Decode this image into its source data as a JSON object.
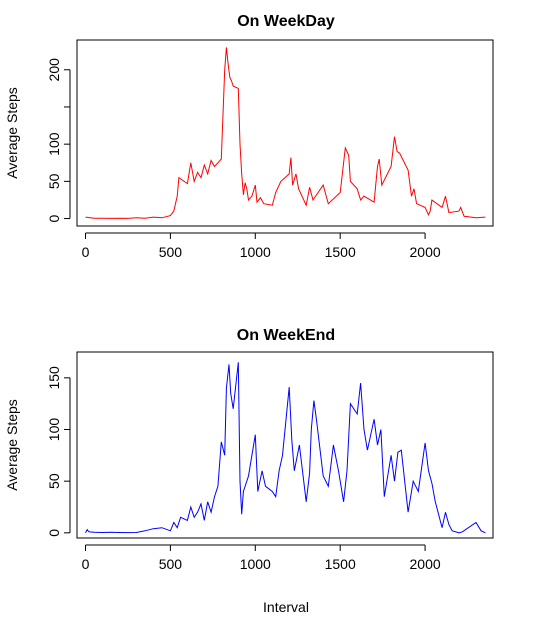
{
  "chart_data": [
    {
      "type": "line",
      "title": "On WeekDay",
      "xlabel": "",
      "ylabel": "Average Steps",
      "color": "#ff0000",
      "xlim": [
        -50,
        2400
      ],
      "ylim": [
        -10,
        240
      ],
      "x_ticks": [
        "0",
        "500",
        "1000",
        "1500",
        "2000"
      ],
      "y_ticks": [
        "0",
        "50",
        "100",
        "150",
        "200"
      ],
      "y_tick_labels_shown": [
        "0",
        "50",
        "100",
        "",
        "200"
      ],
      "x": [
        0,
        50,
        100,
        150,
        200,
        250,
        300,
        350,
        400,
        450,
        500,
        520,
        540,
        550,
        600,
        620,
        640,
        660,
        680,
        700,
        720,
        740,
        760,
        780,
        800,
        820,
        830,
        840,
        850,
        860,
        870,
        900,
        910,
        920,
        930,
        940,
        950,
        960,
        980,
        1000,
        1010,
        1030,
        1050,
        1100,
        1120,
        1150,
        1200,
        1210,
        1220,
        1240,
        1255,
        1300,
        1320,
        1340,
        1400,
        1430,
        1500,
        1530,
        1550,
        1560,
        1600,
        1620,
        1640,
        1700,
        1720,
        1730,
        1745,
        1800,
        1820,
        1835,
        1850,
        1900,
        1920,
        1935,
        1950,
        2000,
        2020,
        2030,
        2040,
        2100,
        2120,
        2140,
        2200,
        2210,
        2230,
        2300,
        2355
      ],
      "values": [
        2,
        0.5,
        0.3,
        0.2,
        0.3,
        0.2,
        1,
        0.5,
        2,
        1,
        4,
        10,
        30,
        55,
        47,
        75,
        50,
        62,
        55,
        72,
        60,
        78,
        70,
        75,
        80,
        200,
        230,
        208,
        190,
        185,
        178,
        175,
        100,
        60,
        32,
        48,
        40,
        25,
        30,
        45,
        22,
        28,
        20,
        18,
        35,
        50,
        60,
        82,
        45,
        60,
        40,
        18,
        42,
        25,
        45,
        20,
        35,
        95,
        85,
        50,
        40,
        25,
        30,
        22,
        70,
        80,
        45,
        70,
        110,
        90,
        88,
        65,
        30,
        40,
        20,
        15,
        5,
        10,
        25,
        15,
        30,
        8,
        10,
        15,
        3,
        1,
        2
      ]
    },
    {
      "type": "line",
      "title": "On WeekEnd",
      "xlabel": "Interval",
      "ylabel": "Average Steps",
      "color": "#0000ff",
      "xlim": [
        -50,
        2400
      ],
      "ylim": [
        -5,
        175
      ],
      "x_ticks": [
        "0",
        "500",
        "1000",
        "1500",
        "2000"
      ],
      "y_ticks": [
        "0",
        "50",
        "100",
        "150"
      ],
      "x": [
        0,
        10,
        20,
        50,
        100,
        150,
        200,
        250,
        300,
        350,
        400,
        450,
        500,
        520,
        540,
        560,
        600,
        620,
        640,
        660,
        680,
        700,
        720,
        740,
        760,
        780,
        800,
        820,
        830,
        845,
        855,
        870,
        900,
        910,
        920,
        930,
        960,
        1000,
        1015,
        1040,
        1060,
        1100,
        1120,
        1140,
        1160,
        1200,
        1215,
        1230,
        1260,
        1300,
        1320,
        1330,
        1345,
        1360,
        1400,
        1430,
        1460,
        1490,
        1520,
        1540,
        1560,
        1600,
        1620,
        1640,
        1660,
        1700,
        1720,
        1740,
        1760,
        1800,
        1820,
        1840,
        1860,
        1900,
        1930,
        1960,
        2000,
        2020,
        2040,
        2060,
        2100,
        2120,
        2140,
        2160,
        2200,
        2220,
        2300,
        2330,
        2355
      ],
      "values": [
        0,
        3,
        1,
        0.5,
        0.3,
        0.5,
        0.3,
        0.2,
        0.3,
        2,
        4,
        5,
        2,
        10,
        5,
        15,
        12,
        25,
        15,
        20,
        28,
        12,
        30,
        20,
        35,
        45,
        88,
        75,
        140,
        163,
        135,
        120,
        165,
        50,
        18,
        40,
        55,
        95,
        40,
        60,
        45,
        40,
        35,
        60,
        75,
        141,
        90,
        60,
        85,
        30,
        58,
        100,
        128,
        110,
        55,
        45,
        85,
        60,
        30,
        60,
        125,
        115,
        145,
        100,
        80,
        110,
        85,
        100,
        35,
        75,
        50,
        78,
        80,
        20,
        50,
        40,
        87,
        60,
        48,
        30,
        5,
        20,
        8,
        2,
        0,
        1,
        10,
        2,
        0
      ]
    }
  ]
}
